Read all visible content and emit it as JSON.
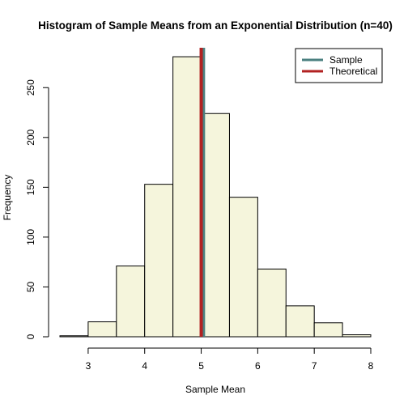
{
  "chart_data": {
    "type": "bar",
    "title": "Histogram of Sample Means from an Exponential Distribution (n=40)",
    "xlabel": "Sample Mean",
    "ylabel": "Frequency",
    "bins": [
      {
        "from": 2.5,
        "to": 3.0,
        "count": 1
      },
      {
        "from": 3.0,
        "to": 3.5,
        "count": 15
      },
      {
        "from": 3.5,
        "to": 4.0,
        "count": 71
      },
      {
        "from": 4.0,
        "to": 4.5,
        "count": 153
      },
      {
        "from": 4.5,
        "to": 5.0,
        "count": 281
      },
      {
        "from": 5.0,
        "to": 5.5,
        "count": 224
      },
      {
        "from": 5.5,
        "to": 6.0,
        "count": 140
      },
      {
        "from": 6.0,
        "to": 6.5,
        "count": 68
      },
      {
        "from": 6.5,
        "to": 7.0,
        "count": 31
      },
      {
        "from": 7.0,
        "to": 7.5,
        "count": 14
      },
      {
        "from": 7.5,
        "to": 8.0,
        "count": 2
      }
    ],
    "xlim": [
      2.5,
      8.0
    ],
    "ylim": [
      0,
      290
    ],
    "xticks": [
      3,
      4,
      5,
      6,
      7,
      8
    ],
    "yticks": [
      0,
      50,
      100,
      150,
      200,
      250
    ],
    "bar_fill": "#f5f5dc",
    "bar_stroke": "#000000",
    "vlines": [
      {
        "name": "Sample",
        "x": 5.04,
        "color": "#4b8080"
      },
      {
        "name": "Theoretical",
        "x": 5.0,
        "color": "#b22222"
      }
    ],
    "legend": {
      "placement": "top-right",
      "entries": [
        {
          "label": "Sample",
          "color": "#4b8080"
        },
        {
          "label": "Theoretical",
          "color": "#b22222"
        }
      ]
    },
    "grid": false
  }
}
